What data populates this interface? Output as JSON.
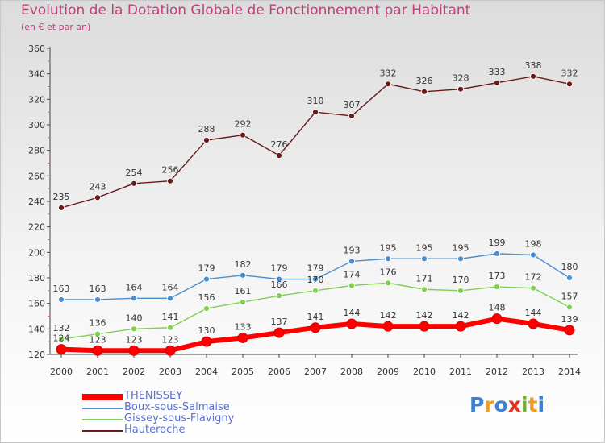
{
  "title": "Evolution de la Dotation Globale de Fonctionnement par Habitant",
  "subtitle": "(en € et par an)",
  "logo": {
    "text": "Proxiti",
    "letters": [
      {
        "ch": "P",
        "color": "#3f7fd0"
      },
      {
        "ch": "r",
        "color": "#f0a020"
      },
      {
        "ch": "o",
        "color": "#3f7fd0"
      },
      {
        "ch": "x",
        "color": "#e03020"
      },
      {
        "ch": "i",
        "color": "#70b030"
      },
      {
        "ch": "t",
        "color": "#f0a020"
      },
      {
        "ch": "i",
        "color": "#3f7fd0"
      }
    ]
  },
  "chart_data": {
    "type": "line",
    "title": "Evolution de la Dotation Globale de Fonctionnement par Habitant",
    "subtitle": "(en € et par an)",
    "x": [
      "2000",
      "2001",
      "2002",
      "2003",
      "2004",
      "2005",
      "2006",
      "2007",
      "2008",
      "2009",
      "2010",
      "2011",
      "2012",
      "2013",
      "2014"
    ],
    "ylim": [
      120,
      360
    ],
    "yticks": [
      120,
      140,
      160,
      180,
      200,
      220,
      240,
      260,
      280,
      300,
      320,
      340,
      360
    ],
    "grid": false,
    "legend_position": "bottom-left",
    "series": [
      {
        "name": "THENISSEY",
        "color": "#ff0000",
        "values": [
          124,
          123,
          123,
          123,
          130,
          133,
          137,
          141,
          144,
          142,
          142,
          142,
          148,
          144,
          139
        ],
        "labels": [
          "124",
          "123",
          "123",
          "123",
          "130",
          "133",
          "137",
          "141",
          "144",
          "142",
          "142",
          "142",
          "148",
          "144",
          "139"
        ]
      },
      {
        "name": "Boux-sous-Salmaise",
        "color": "#4a8ed0",
        "values": [
          163,
          163,
          164,
          164,
          179,
          182,
          179,
          179,
          193,
          195,
          195,
          195,
          199,
          198,
          180
        ],
        "labels": [
          "163",
          "163",
          "164",
          "164",
          "179",
          "182",
          "179",
          "179",
          "193",
          "195",
          "195",
          "195",
          "199",
          "198",
          "180"
        ]
      },
      {
        "name": "Gissey-sous-Flavigny",
        "color": "#80d050",
        "values": [
          132,
          136,
          140,
          141,
          156,
          161,
          166,
          170,
          174,
          176,
          171,
          170,
          173,
          172,
          157
        ],
        "labels": [
          "132",
          "136",
          "140",
          "141",
          "156",
          "161",
          "166",
          "170",
          "174",
          "176",
          "171",
          "170",
          "173",
          "172",
          "157"
        ]
      },
      {
        "name": "Hauteroche",
        "color": "#6b1a1a",
        "values": [
          235,
          243,
          254,
          256,
          288,
          292,
          276,
          310,
          307,
          332,
          326,
          328,
          333,
          338,
          332
        ],
        "labels": [
          "235",
          "243",
          "254",
          "256",
          "288",
          "292",
          "276",
          "310",
          "307",
          "332",
          "326",
          "328",
          "333",
          "338",
          "332"
        ]
      }
    ]
  }
}
